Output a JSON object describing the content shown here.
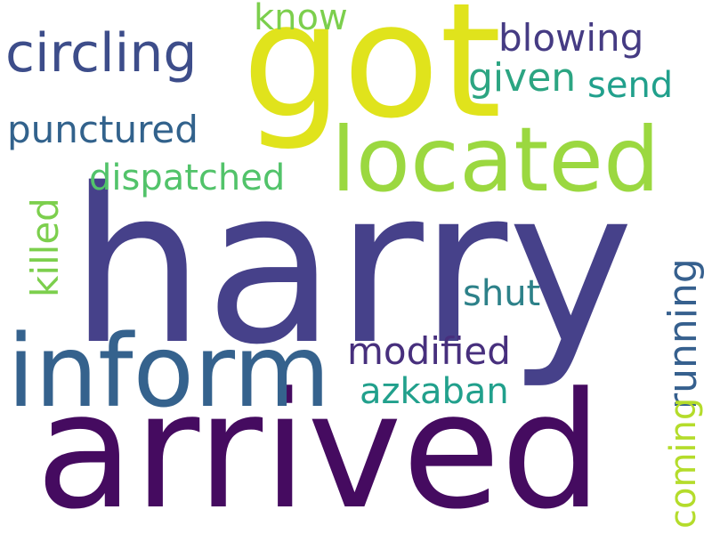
{
  "word_cloud": {
    "words": [
      {
        "text": "harry",
        "color": "#46418a"
      },
      {
        "text": "arrived",
        "color": "#450b60"
      },
      {
        "text": "got",
        "color": "#e0e31c"
      },
      {
        "text": "located",
        "color": "#9bd840"
      },
      {
        "text": "inform",
        "color": "#35628d"
      },
      {
        "text": "circling",
        "color": "#3d4d8a"
      },
      {
        "text": "punctured",
        "color": "#32628c"
      },
      {
        "text": "dispatched",
        "color": "#52c36a"
      },
      {
        "text": "know",
        "color": "#7ccf4d"
      },
      {
        "text": "blowing",
        "color": "#453b83"
      },
      {
        "text": "given",
        "color": "#2ca582"
      },
      {
        "text": "send",
        "color": "#21a08c"
      },
      {
        "text": "killed",
        "color": "#7ccf4d"
      },
      {
        "text": "shut",
        "color": "#2d8189"
      },
      {
        "text": "modified",
        "color": "#472f7d"
      },
      {
        "text": "azkaban",
        "color": "#21a08c"
      },
      {
        "text": "running",
        "color": "#36608e"
      },
      {
        "text": "coming",
        "color": "#b4dc2b"
      }
    ]
  }
}
